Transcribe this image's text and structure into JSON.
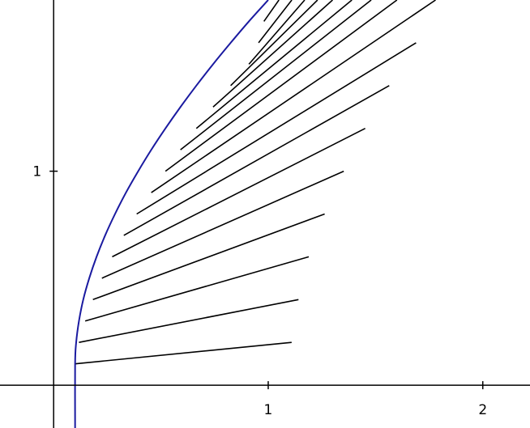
{
  "chart_data": {
    "type": "line",
    "x_tick_labels": [
      "1",
      "2"
    ],
    "y_tick_labels": [
      "1"
    ],
    "x_ticks": [
      1,
      2
    ],
    "y_ticks": [
      1
    ],
    "xlim": [
      -0.25,
      2.22
    ],
    "ylim": [
      -0.2,
      1.8
    ],
    "grid": false,
    "colors": {
      "curve": "#1a1aa0",
      "segments": "#000000",
      "axes": "#000000"
    },
    "curve": {
      "x": [
        0.1,
        0.1,
        0.105,
        0.118,
        0.138,
        0.166,
        0.2,
        0.24,
        0.286,
        0.337,
        0.394,
        0.455,
        0.521,
        0.591,
        0.665,
        0.743,
        0.825,
        0.91,
        1.0
      ],
      "y": [
        -0.2,
        0.1,
        0.2,
        0.3,
        0.4,
        0.5,
        0.6,
        0.7,
        0.8,
        0.9,
        1.0,
        1.1,
        1.2,
        1.3,
        1.4,
        1.5,
        1.6,
        1.7,
        1.8
      ]
    },
    "segments": [
      {
        "x1": 0.1,
        "y1": 0.1,
        "x2": 1.109,
        "y2": 0.2
      },
      {
        "x1": 0.118,
        "y1": 0.2,
        "x2": 1.141,
        "y2": 0.4
      },
      {
        "x1": 0.147,
        "y1": 0.3,
        "x2": 1.189,
        "y2": 0.6
      },
      {
        "x1": 0.183,
        "y1": 0.4,
        "x2": 1.263,
        "y2": 0.8
      },
      {
        "x1": 0.225,
        "y1": 0.5,
        "x2": 1.352,
        "y2": 1.0
      },
      {
        "x1": 0.273,
        "y1": 0.6,
        "x2": 1.452,
        "y2": 1.2
      },
      {
        "x1": 0.327,
        "y1": 0.7,
        "x2": 1.564,
        "y2": 1.4
      },
      {
        "x1": 0.387,
        "y1": 0.8,
        "x2": 1.689,
        "y2": 1.6
      },
      {
        "x1": 0.455,
        "y1": 0.9,
        "x2": 1.78,
        "y2": 1.8
      },
      {
        "x1": 0.521,
        "y1": 1.0,
        "x2": 1.6,
        "y2": 1.8
      },
      {
        "x1": 0.591,
        "y1": 1.1,
        "x2": 1.48,
        "y2": 1.8
      },
      {
        "x1": 0.665,
        "y1": 1.2,
        "x2": 1.39,
        "y2": 1.8
      },
      {
        "x1": 0.743,
        "y1": 1.3,
        "x2": 1.3,
        "y2": 1.8
      },
      {
        "x1": 0.825,
        "y1": 1.4,
        "x2": 1.23,
        "y2": 1.8
      },
      {
        "x1": 0.91,
        "y1": 1.5,
        "x2": 1.17,
        "y2": 1.8
      },
      {
        "x1": 0.955,
        "y1": 1.6,
        "x2": 1.11,
        "y2": 1.8
      },
      {
        "x1": 0.98,
        "y1": 1.7,
        "x2": 1.05,
        "y2": 1.8
      }
    ]
  }
}
